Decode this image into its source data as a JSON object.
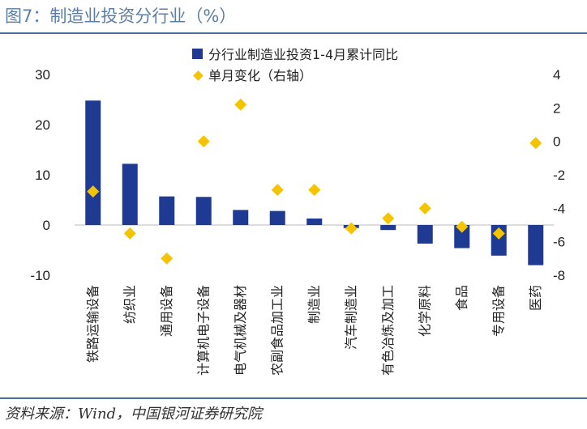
{
  "header": {
    "title": "图7：制造业投资分行业（%）"
  },
  "footer": {
    "source": "资料来源：Wind，中国银河证券研究院"
  },
  "colors": {
    "bar": "#1f3a93",
    "marker": "#f5c400",
    "rule": "#4a6f9a"
  },
  "chart_data": {
    "type": "bar",
    "categories": [
      "铁路运输设备",
      "纺织业",
      "通用设备",
      "计算机电子设备",
      "电气机械及器材",
      "农副食品加工业",
      "制造业",
      "汽车制造业",
      "有色冶炼及加工",
      "化学原料",
      "食品",
      "专用设备",
      "医药"
    ],
    "series": [
      {
        "name": "分行业制造业投资1-4月累计同比",
        "type": "bar",
        "axis": "left",
        "values": [
          24.8,
          12.2,
          5.7,
          5.6,
          3.0,
          2.8,
          1.3,
          -0.6,
          -1.0,
          -3.7,
          -4.6,
          -6.1,
          -8.0
        ]
      },
      {
        "name": "单月变化（右轴）",
        "type": "marker",
        "axis": "right",
        "values": [
          -3.0,
          -5.5,
          -7.0,
          0.0,
          2.2,
          -2.9,
          -2.9,
          -5.2,
          -4.6,
          -4.0,
          -5.1,
          -5.5,
          -0.1
        ]
      }
    ],
    "yaxis_left": {
      "min": -10,
      "max": 30,
      "ticks": [
        "30",
        "20",
        "10",
        "0",
        "-10"
      ]
    },
    "yaxis_right": {
      "min": -8,
      "max": 4,
      "ticks": [
        "4",
        "2",
        "0",
        "-2",
        "-4",
        "-6",
        "-8"
      ]
    },
    "legend_position": "top",
    "grid": false
  }
}
